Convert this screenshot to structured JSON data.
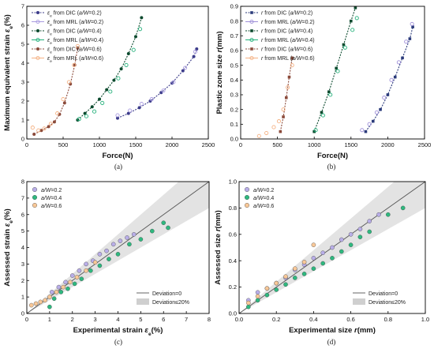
{
  "chart_data": [
    {
      "panel": "a",
      "caption": "(a)",
      "type": "scatter",
      "xlabel": "Force(N)",
      "ylabel": "Maximum equivalent strain ε_e(%)",
      "xlim": [
        0,
        2500
      ],
      "ylim": [
        0,
        7
      ],
      "xticks": [
        "0",
        "500",
        "1000",
        "1500",
        "2000",
        "2500"
      ],
      "yticks": [
        "0",
        "1",
        "2",
        "3",
        "4",
        "5",
        "6",
        "7"
      ],
      "legend_position": "top-left",
      "series": [
        {
          "name": "ε_e from DIC (a/W=0.2)",
          "color": "#3c3c8a",
          "marker": "circle-line",
          "x": [
            1250,
            1400,
            1550,
            1700,
            1850,
            2000,
            2150,
            2300,
            2340
          ],
          "y": [
            1.1,
            1.35,
            1.65,
            2.0,
            2.45,
            2.95,
            3.6,
            4.35,
            4.75
          ]
        },
        {
          "name": "ε_e from MRL (a/W=0.2)",
          "color": "#a99be0",
          "marker": "open-circle",
          "x": [
            1250,
            1420,
            1580,
            1720,
            1880,
            2020,
            2180,
            2320
          ],
          "y": [
            1.25,
            1.5,
            1.85,
            2.1,
            2.55,
            3.0,
            3.75,
            4.6
          ]
        },
        {
          "name": "ε_e from DIC (a/W=0.4)",
          "color": "#0c4a2e",
          "marker": "circle-line",
          "x": [
            700,
            800,
            900,
            1000,
            1100,
            1200,
            1300,
            1400,
            1500,
            1580
          ],
          "y": [
            1.0,
            1.35,
            1.7,
            2.1,
            2.6,
            3.1,
            3.7,
            4.5,
            5.4,
            6.4
          ]
        },
        {
          "name": "ε_e from MRL (a/W=0.4)",
          "color": "#22b07a",
          "marker": "open-circle",
          "x": [
            720,
            820,
            930,
            1040,
            1150,
            1260,
            1370,
            1470,
            1560
          ],
          "y": [
            1.05,
            1.2,
            1.45,
            1.9,
            2.5,
            3.2,
            3.9,
            4.7,
            5.8
          ]
        },
        {
          "name": "ε_e from DIC (a/W=0.6)",
          "color": "#8b4a3a",
          "marker": "circle-line",
          "x": [
            100,
            200,
            300,
            380,
            450,
            520,
            600,
            660,
            700
          ],
          "y": [
            0.25,
            0.45,
            0.65,
            0.9,
            1.3,
            1.9,
            2.9,
            3.9,
            4.8
          ]
        },
        {
          "name": "ε_e from MRL (a/W=0.6)",
          "color": "#f4b183",
          "marker": "open-circle",
          "x": [
            80,
            160,
            240,
            330,
            420,
            500,
            580,
            650,
            700
          ],
          "y": [
            0.6,
            0.45,
            0.55,
            0.8,
            1.35,
            2.1,
            3.0,
            3.9,
            4.9
          ]
        }
      ]
    },
    {
      "panel": "b",
      "caption": "(b)",
      "type": "scatter",
      "xlabel": "Force(N)",
      "ylabel": "Plastic zone size r(mm)",
      "xlim": [
        0,
        2500
      ],
      "ylim": [
        0.0,
        0.9
      ],
      "xticks": [
        "0",
        "500",
        "1000",
        "1500",
        "2000",
        "2500"
      ],
      "yticks": [
        "0.0",
        "0.1",
        "0.2",
        "0.3",
        "0.4",
        "0.5",
        "0.6",
        "0.7",
        "0.8",
        "0.9"
      ],
      "legend_position": "top-left",
      "series": [
        {
          "name": "r from DIC (a/W=0.2)",
          "color": "#2a3a7a",
          "marker": "square-line",
          "x": [
            1700,
            1800,
            1900,
            2000,
            2100,
            2200,
            2300,
            2340
          ],
          "y": [
            0.05,
            0.12,
            0.2,
            0.3,
            0.42,
            0.55,
            0.68,
            0.76
          ]
        },
        {
          "name": "r from MRL (a/W=0.2)",
          "color": "#9e8fd8",
          "marker": "open-circle",
          "x": [
            1650,
            1750,
            1850,
            1950,
            2050,
            2150,
            2250,
            2330
          ],
          "y": [
            0.06,
            0.1,
            0.18,
            0.28,
            0.4,
            0.52,
            0.66,
            0.78
          ]
        },
        {
          "name": "r from DIC (a/W=0.4)",
          "color": "#0c4a2e",
          "marker": "square-line",
          "x": [
            1000,
            1100,
            1200,
            1300,
            1400,
            1500,
            1560
          ],
          "y": [
            0.05,
            0.18,
            0.32,
            0.48,
            0.64,
            0.8,
            0.89
          ]
        },
        {
          "name": "r from MRL (a/W=0.4)",
          "color": "#22b07a",
          "marker": "open-circle",
          "x": [
            1020,
            1120,
            1220,
            1320,
            1420,
            1520,
            1580
          ],
          "y": [
            0.06,
            0.16,
            0.3,
            0.46,
            0.62,
            0.74,
            0.82
          ]
        },
        {
          "name": "r from DIC (a/W=0.6)",
          "color": "#8b4a3a",
          "marker": "square-line",
          "x": [
            540,
            580,
            620,
            660,
            700
          ],
          "y": [
            0.05,
            0.15,
            0.28,
            0.42,
            0.55
          ]
        },
        {
          "name": "r from MRL (a/W=0.6)",
          "color": "#f4b183",
          "marker": "open-circle",
          "x": [
            250,
            350,
            450,
            520,
            580,
            640,
            700
          ],
          "y": [
            0.02,
            0.04,
            0.08,
            0.12,
            0.2,
            0.35,
            0.5
          ]
        }
      ]
    },
    {
      "panel": "c",
      "caption": "(c)",
      "type": "scatter",
      "xlabel": "Experimental strain ε_e(%)",
      "ylabel": "Assessed strain ε_e(%)",
      "xlim": [
        0,
        8
      ],
      "ylim": [
        0,
        8
      ],
      "xticks": [
        "0",
        "1",
        "2",
        "3",
        "4",
        "5",
        "6",
        "7",
        "8"
      ],
      "yticks": [
        "0",
        "1",
        "2",
        "3",
        "4",
        "5",
        "6",
        "7",
        "8"
      ],
      "legend_position": "top-left and bottom-right",
      "reference": {
        "line_label": "Deviation=0",
        "band_label": "Deviation≤20%",
        "band_fraction": 0.2
      },
      "series": [
        {
          "name": "a/W=0.2",
          "color": "#b9aee8",
          "x": [
            1.1,
            1.4,
            1.7,
            2.0,
            2.3,
            2.6,
            2.9,
            3.2,
            3.5,
            3.8,
            4.1,
            4.4,
            4.7
          ],
          "y": [
            1.3,
            1.6,
            1.9,
            2.3,
            2.6,
            3.0,
            3.2,
            3.6,
            3.8,
            4.2,
            4.4,
            4.6,
            4.8
          ]
        },
        {
          "name": "a/W=0.4",
          "color": "#2fb87f",
          "x": [
            1.0,
            1.2,
            1.5,
            1.8,
            2.1,
            2.4,
            2.8,
            3.2,
            3.6,
            4.0,
            4.5,
            5.0,
            5.5,
            6.0,
            6.2
          ],
          "y": [
            0.4,
            0.9,
            1.3,
            1.5,
            1.8,
            2.1,
            2.6,
            2.9,
            3.3,
            3.6,
            4.2,
            4.5,
            5.0,
            5.5,
            5.2
          ]
        },
        {
          "name": "a/W=0.6",
          "color": "#f8c898",
          "x": [
            0.2,
            0.4,
            0.6,
            0.8,
            1.0,
            1.3,
            1.6,
            1.9,
            2.2,
            2.6,
            3.0
          ],
          "y": [
            0.5,
            0.6,
            0.7,
            0.8,
            1.0,
            1.3,
            1.6,
            1.9,
            2.2,
            2.6,
            3.1
          ]
        }
      ]
    },
    {
      "panel": "d",
      "caption": "(d)",
      "type": "scatter",
      "xlabel": "Experimental size r(mm)",
      "ylabel": "Assessed size r(mm)",
      "xlim": [
        0.0,
        1.0
      ],
      "ylim": [
        0.0,
        1.0
      ],
      "xticks": [
        "0.0",
        "0.2",
        "0.4",
        "0.6",
        "0.8",
        "1.0"
      ],
      "yticks": [
        "0.0",
        "0.2",
        "0.4",
        "0.6",
        "0.8",
        "1.0"
      ],
      "legend_position": "top-left and bottom-right",
      "reference": {
        "line_label": "Deviation=0",
        "band_label": "Deviation≤20%",
        "band_fraction": 0.2
      },
      "series": [
        {
          "name": "a/W=0.2",
          "color": "#b9aee8",
          "x": [
            0.05,
            0.1,
            0.15,
            0.2,
            0.25,
            0.3,
            0.35,
            0.4,
            0.45,
            0.5,
            0.55,
            0.6,
            0.65,
            0.7,
            0.75
          ],
          "y": [
            0.1,
            0.16,
            0.19,
            0.23,
            0.27,
            0.33,
            0.37,
            0.42,
            0.46,
            0.5,
            0.56,
            0.6,
            0.64,
            0.7,
            0.75
          ]
        },
        {
          "name": "a/W=0.4",
          "color": "#2fb87f",
          "x": [
            0.05,
            0.1,
            0.15,
            0.2,
            0.25,
            0.3,
            0.35,
            0.4,
            0.45,
            0.5,
            0.55,
            0.6,
            0.65,
            0.7,
            0.8,
            0.88
          ],
          "y": [
            0.05,
            0.1,
            0.14,
            0.18,
            0.22,
            0.27,
            0.3,
            0.34,
            0.38,
            0.42,
            0.47,
            0.52,
            0.58,
            0.62,
            0.75,
            0.8
          ]
        },
        {
          "name": "a/W=0.6",
          "color": "#f8c898",
          "x": [
            0.05,
            0.1,
            0.15,
            0.2,
            0.25,
            0.3,
            0.35,
            0.4
          ],
          "y": [
            0.08,
            0.13,
            0.19,
            0.23,
            0.28,
            0.34,
            0.39,
            0.52
          ]
        }
      ]
    }
  ]
}
